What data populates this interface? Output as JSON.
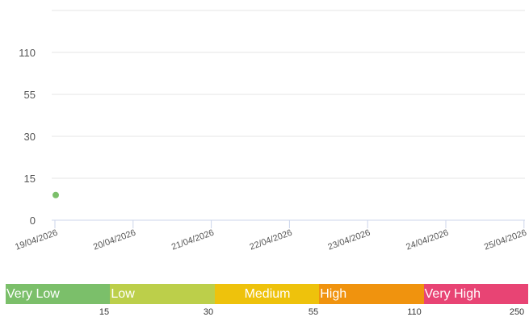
{
  "chart_data": {
    "type": "scatter",
    "title": "",
    "xlabel": "",
    "ylabel": "",
    "x_ticks": [
      "19/04/2026",
      "20/04/2026",
      "21/04/2026",
      "22/04/2026",
      "23/04/2026",
      "24/04/2026",
      "25/04/2026"
    ],
    "y_ticks": [
      "0",
      "15",
      "30",
      "55",
      "110"
    ],
    "y_tick_values": [
      0,
      15,
      30,
      55,
      110
    ],
    "grid": true,
    "series": [
      {
        "color": "#7bbf6a",
        "points": [
          {
            "x": "19/04/2026",
            "y": 9
          }
        ]
      }
    ]
  },
  "legend": {
    "bands": [
      {
        "label": "Very Low",
        "color": "#7bbf6a"
      },
      {
        "label": "Low",
        "color": "#bccf4a"
      },
      {
        "label": "Medium",
        "color": "#eec20c"
      },
      {
        "label": "High",
        "color": "#f0930e"
      },
      {
        "label": "Very High",
        "color": "#e84474"
      }
    ],
    "thresholds": [
      "15",
      "30",
      "55",
      "110",
      "250"
    ]
  }
}
